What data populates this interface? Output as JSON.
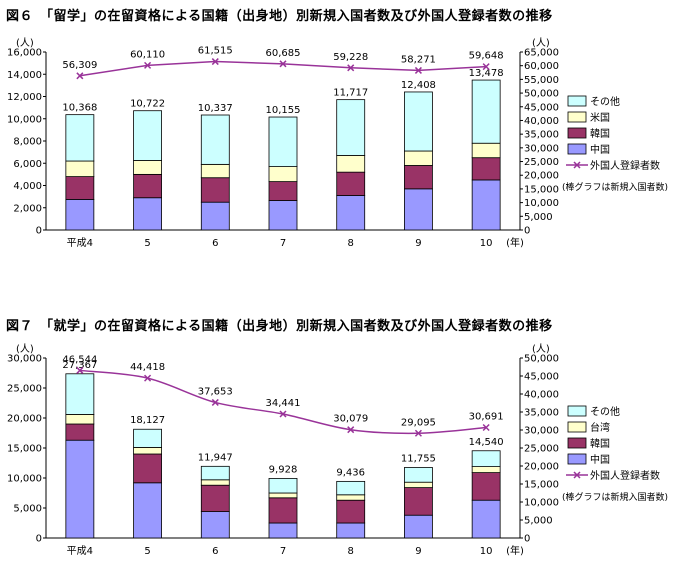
{
  "charts": [
    {
      "figure_title": "図６　「留学」の在留資格による国籍（出身地）別新規入国者数及び外国人登録者数の推移",
      "left_unit": "(人)",
      "right_unit": "(人)",
      "x_unit": "(年)",
      "note": "(棒グラフは新規入国者数)",
      "line_name": "外国人登録者数"
    },
    {
      "figure_title": "図７　「就学」の在留資格による国籍（出身地）別新規入国者数及び外国人登録者数の推移",
      "left_unit": "(人)",
      "right_unit": "(人)",
      "x_unit": "(年)",
      "note": "(棒グラフは新規入国者数)",
      "line_name": "外国人登録者数"
    }
  ],
  "chart_data": [
    {
      "type": "bar",
      "stacked": true,
      "title": "図６　「留学」の在留資格による国籍（出身地）別新規入国者数及び外国人登録者数の推移",
      "categories": [
        "平成4",
        "5",
        "6",
        "7",
        "8",
        "9",
        "10"
      ],
      "series": [
        {
          "name": "中国",
          "color": "#9999ff",
          "values": [
            2750,
            2900,
            2500,
            2650,
            3100,
            3700,
            4500
          ]
        },
        {
          "name": "韓国",
          "color": "#993366",
          "values": [
            2050,
            2100,
            2200,
            1700,
            2100,
            2100,
            2000
          ]
        },
        {
          "name": "米国",
          "color": "#ffffcc",
          "values": [
            1400,
            1250,
            1200,
            1350,
            1500,
            1300,
            1300
          ]
        },
        {
          "name": "その他",
          "color": "#ccffff",
          "values": [
            4168,
            4472,
            4437,
            4455,
            5017,
            5308,
            5678
          ]
        }
      ],
      "bar_totals": [
        10368,
        10722,
        10337,
        10155,
        11717,
        12408,
        13478
      ],
      "bar_total_labels": [
        "10,368",
        "10,722",
        "10,337",
        "10,155",
        "11,717",
        "12,408",
        "13,478"
      ],
      "line": {
        "name": "外国人登録者数",
        "color": "#993399",
        "axis": "right",
        "values": [
          56309,
          60110,
          61515,
          60685,
          59228,
          58271,
          59648
        ],
        "labels": [
          "56,309",
          "60,110",
          "61,515",
          "60,685",
          "59,228",
          "58,271",
          "59,648"
        ]
      },
      "ylim_left": [
        0,
        16000
      ],
      "yticks_left": [
        "0",
        "2,000",
        "4,000",
        "6,000",
        "8,000",
        "10,000",
        "12,000",
        "14,000",
        "16,000"
      ],
      "ylim_right": [
        0,
        65000
      ],
      "yticks_right": [
        "0",
        "5,000",
        "10,000",
        "15,000",
        "20,000",
        "25,000",
        "30,000",
        "35,000",
        "40,000",
        "45,000",
        "50,000",
        "55,000",
        "60,000",
        "65,000"
      ],
      "legend": "right"
    },
    {
      "type": "bar",
      "stacked": true,
      "title": "図７　「就学」の在留資格による国籍（出身地）別新規入国者数及び外国人登録者数の推移",
      "categories": [
        "平成4",
        "5",
        "6",
        "7",
        "8",
        "9",
        "10"
      ],
      "series": [
        {
          "name": "中国",
          "color": "#9999ff",
          "values": [
            16300,
            9200,
            4400,
            2500,
            2500,
            3800,
            6300
          ]
        },
        {
          "name": "韓国",
          "color": "#993366",
          "values": [
            2700,
            4800,
            4400,
            4200,
            3800,
            4600,
            4600
          ]
        },
        {
          "name": "台湾",
          "color": "#ffffcc",
          "values": [
            1600,
            1100,
            900,
            800,
            900,
            900,
            1000
          ]
        },
        {
          "name": "その他",
          "color": "#ccffff",
          "values": [
            6767,
            3027,
            2247,
            2428,
            2236,
            2455,
            2640
          ]
        }
      ],
      "bar_totals": [
        27367,
        18127,
        11947,
        9928,
        9436,
        11755,
        14540
      ],
      "bar_total_labels": [
        "27,367",
        "18,127",
        "11,947",
        "9,928",
        "9,436",
        "11,755",
        "14,540"
      ],
      "line": {
        "name": "外国人登録者数",
        "color": "#993399",
        "axis": "right",
        "values": [
          46544,
          44418,
          37653,
          34441,
          30079,
          29095,
          30691
        ],
        "labels": [
          "46,544",
          "44,418",
          "37,653",
          "34,441",
          "30,079",
          "29,095",
          "30,691"
        ]
      },
      "ylim_left": [
        0,
        30000
      ],
      "yticks_left": [
        "0",
        "5,000",
        "10,000",
        "15,000",
        "20,000",
        "25,000",
        "30,000"
      ],
      "ylim_right": [
        0,
        50000
      ],
      "yticks_right": [
        "0",
        "5,000",
        "10,000",
        "15,000",
        "20,000",
        "25,000",
        "30,000",
        "35,000",
        "40,000",
        "45,000",
        "50,000"
      ],
      "legend": "right"
    }
  ]
}
